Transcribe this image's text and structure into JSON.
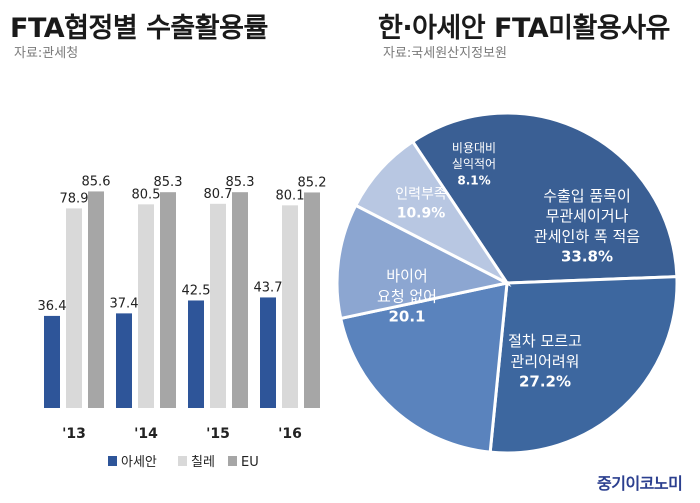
{
  "left": {
    "title": "FTA협정별 수출활용률",
    "source": "자료:관세청"
  },
  "right": {
    "title": "한·아세안 FTA미활용사유",
    "source": "자료:국세원산지정보원"
  },
  "brand": "중기이코노미",
  "colors": {
    "asean": "#2e5599",
    "chile": "#d9d9d9",
    "eu": "#a6a6a6"
  },
  "chart_data": [
    {
      "type": "bar",
      "title": "FTA협정별 수출활용률",
      "categories": [
        "'13",
        "'14",
        "'15",
        "'16"
      ],
      "series": [
        {
          "name": "아세안",
          "values": [
            36.4,
            37.4,
            42.5,
            43.7
          ],
          "color": "#2e5599"
        },
        {
          "name": "칠레",
          "values": [
            78.9,
            80.5,
            80.7,
            80.1
          ],
          "color": "#d9d9d9"
        },
        {
          "name": "EU",
          "values": [
            85.6,
            85.3,
            85.3,
            85.2
          ],
          "color": "#a6a6a6"
        }
      ],
      "ylim": [
        0,
        100
      ],
      "legend": "bottom",
      "grid": false
    },
    {
      "type": "pie",
      "title": "한·아세안 FTA미활용사유",
      "slices": [
        {
          "lines": [
            "수출입 품목이",
            "무관세이거나",
            "관세인하 폭 적음",
            "33.8%"
          ],
          "value": 33.8,
          "color": "#3a5f94"
        },
        {
          "lines": [
            "절차 모르고",
            "관리어려워",
            "27.2%"
          ],
          "value": 27.2,
          "color": "#3d679f"
        },
        {
          "lines": [
            "바이어",
            "요청 없어",
            "20.1"
          ],
          "value": 20.1,
          "color": "#5a83bd"
        },
        {
          "lines": [
            "인력부족",
            "10.9%"
          ],
          "value": 10.9,
          "color": "#8ca6d1"
        },
        {
          "lines": [
            "비용대비",
            "실익적어",
            "8.1%"
          ],
          "value": 8.1,
          "color": "#b8c7e2"
        }
      ]
    }
  ]
}
